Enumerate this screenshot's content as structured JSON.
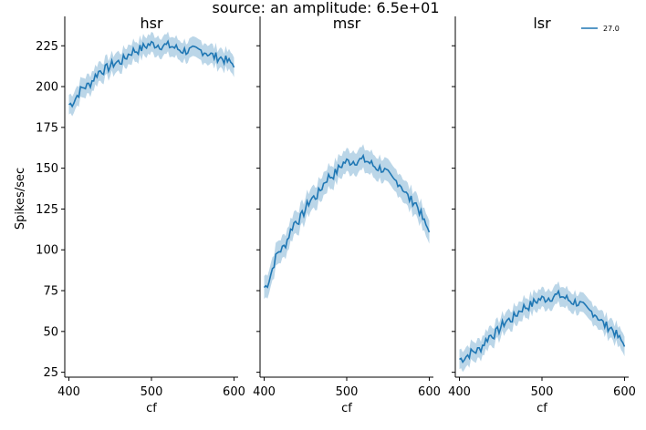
{
  "figure_title": "source: an amplitude: 6.5e+01",
  "colors": {
    "line": "#1f77b4",
    "band": "#1f77b4"
  },
  "chart_data": {
    "type": "line",
    "title": "source: an amplitude: 6.5e+01",
    "ylabel": "Spikes/sec",
    "xlabel": "cf",
    "ylim": [
      22,
      243
    ],
    "yticks": [
      25,
      50,
      75,
      100,
      125,
      150,
      175,
      200,
      225
    ],
    "xlim": [
      395,
      605
    ],
    "xticks": [
      400,
      500,
      600
    ],
    "grid": false,
    "legend": {
      "placement": "top-right",
      "panel": "lsr",
      "entries": [
        "27.0"
      ]
    },
    "panels": [
      {
        "title": "hsr",
        "xlabel": "cf",
        "series": [
          {
            "name": "27.0",
            "x": [
              400,
              420,
              440,
              460,
              480,
              500,
              520,
              540,
              560,
              580,
              600
            ],
            "y": [
              189,
              200,
              210,
              215,
              222,
              226,
              225,
              222,
              222,
              218,
              214
            ],
            "band": 6
          }
        ]
      },
      {
        "title": "msr",
        "xlabel": "cf",
        "series": [
          {
            "name": "27.0",
            "x": [
              400,
              420,
              440,
              460,
              480,
              500,
              520,
              540,
              560,
              580,
              600
            ],
            "y": [
              77,
              100,
              118,
              132,
              145,
              154,
              155,
              150,
              142,
              130,
              113
            ],
            "band": 7
          }
        ]
      },
      {
        "title": "lsr",
        "xlabel": "cf",
        "series": [
          {
            "name": "27.0",
            "x": [
              400,
              420,
              440,
              460,
              480,
              500,
              520,
              540,
              560,
              580,
              600
            ],
            "y": [
              33,
              38,
              48,
              57,
              65,
              70,
              72,
              68,
              62,
              53,
              43
            ],
            "band": 6
          }
        ]
      }
    ]
  }
}
